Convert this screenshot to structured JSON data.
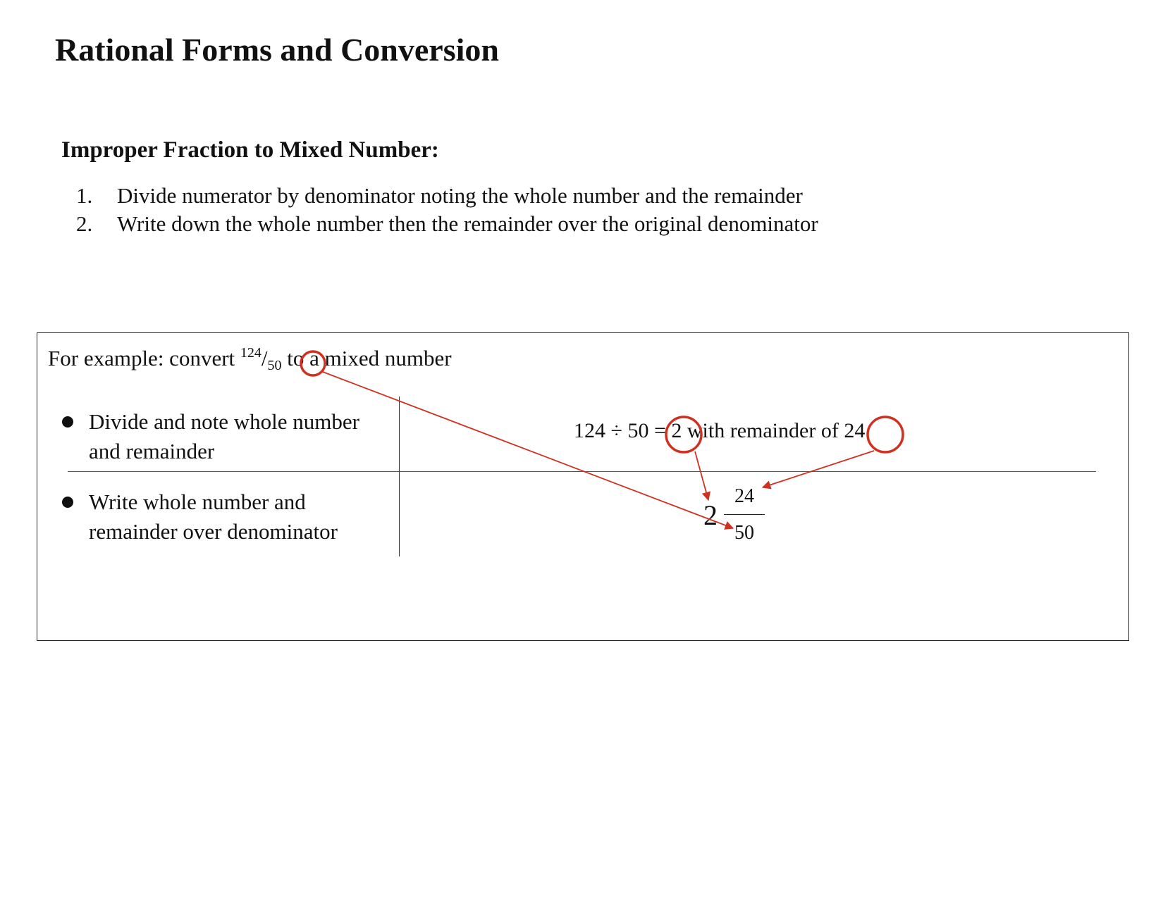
{
  "document": {
    "title": "Rational Forms and Conversion",
    "section_heading": "Improper Fraction to Mixed Number:",
    "steps": [
      {
        "number": "1.",
        "text": "Divide numerator by denominator noting the whole number and the remainder"
      },
      {
        "number": "2.",
        "text": "Write down the whole number then the remainder over the original denominator"
      }
    ]
  },
  "example": {
    "intro_prefix": "For example: convert ",
    "numerator": "124",
    "slash": "/",
    "denominator": "50",
    "intro_suffix": " to a mixed number",
    "rows": [
      {
        "bullet": "Divide and note whole number and remainder"
      },
      {
        "bullet": "Write whole number and remainder over denominator"
      }
    ],
    "equation": {
      "dividend": "124",
      "operator": "÷",
      "divisor": "50",
      "equals": "=",
      "quotient": "2",
      "phrase": "with remainder of",
      "remainder": "24"
    },
    "result": {
      "whole": "2",
      "numerator": "24",
      "denominator": "50"
    }
  },
  "colors": {
    "annotation": "#d0301f",
    "text": "#111111"
  }
}
